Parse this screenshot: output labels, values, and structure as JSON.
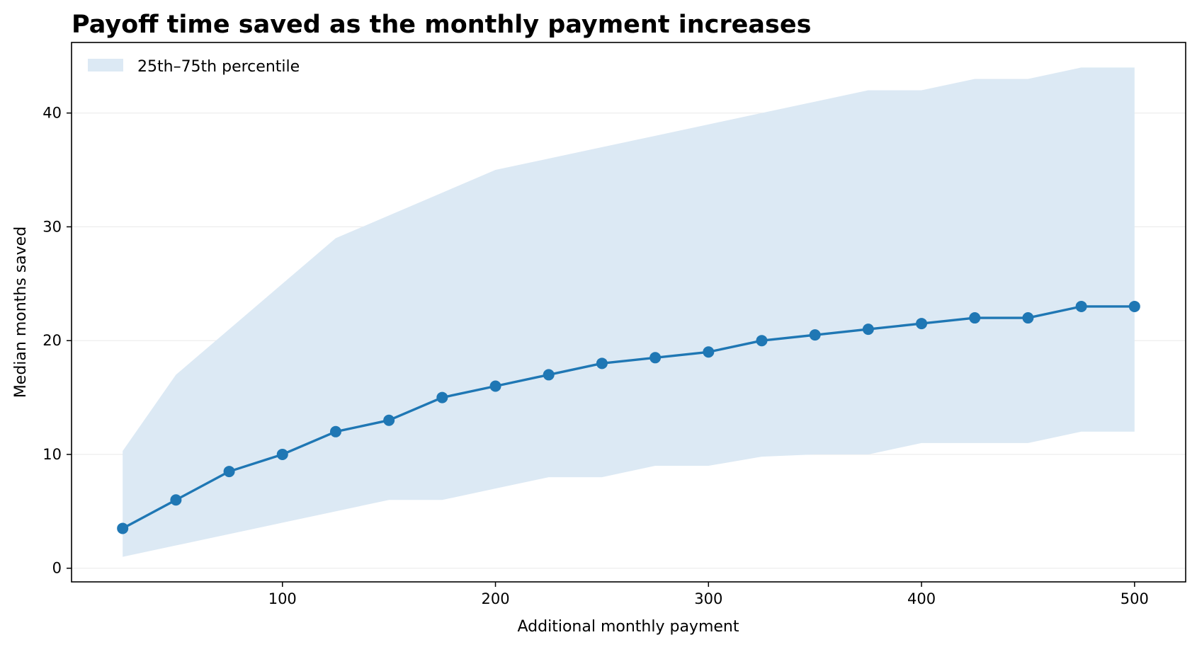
{
  "chart_data": {
    "type": "line",
    "title": "Payoff time saved as the monthly payment increases",
    "xlabel": "Additional monthly payment",
    "ylabel": "Median months saved",
    "xlim": [
      1,
      524
    ],
    "ylim": [
      -1.2,
      46.2
    ],
    "xticks": [
      100,
      200,
      300,
      400,
      500
    ],
    "yticks": [
      0,
      10,
      20,
      30,
      40
    ],
    "grid": "horizontal",
    "legend": "top-left",
    "colors": {
      "line": "#1f77b4",
      "band": "#dce9f4",
      "grid": "#ebebeb",
      "axis": "#000000"
    },
    "x": [
      25,
      50,
      75,
      100,
      125,
      150,
      175,
      200,
      225,
      250,
      275,
      300,
      325,
      350,
      375,
      400,
      425,
      450,
      475,
      500
    ],
    "series": [
      {
        "kind": "band",
        "name": "25th–75th percentile",
        "lower": [
          1,
          2,
          3,
          4,
          5,
          6,
          6,
          7,
          8,
          8,
          9,
          9,
          9.8,
          10,
          10,
          11,
          11,
          11,
          12,
          12
        ],
        "upper": [
          10.3,
          17,
          21,
          25,
          29,
          31,
          33,
          35,
          36,
          37,
          38,
          39,
          40,
          41,
          42,
          42,
          43,
          43,
          44,
          44
        ]
      },
      {
        "kind": "line",
        "values": [
          3.5,
          6,
          8.5,
          10,
          12,
          13,
          15,
          16,
          17,
          18,
          18.5,
          19,
          20,
          20.5,
          21,
          21.5,
          22,
          22,
          23,
          23
        ]
      }
    ]
  }
}
